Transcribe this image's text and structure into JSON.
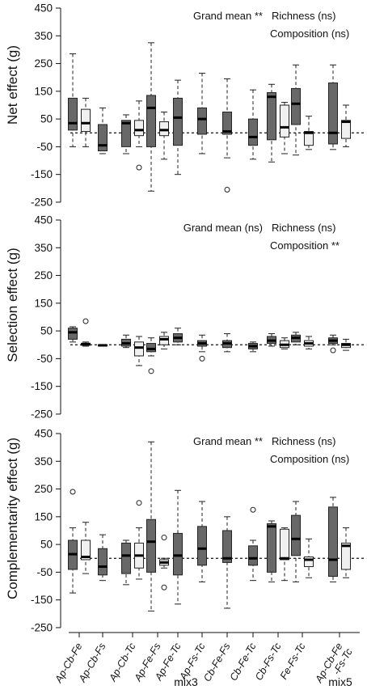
{
  "chart_data": [
    {
      "type": "box",
      "ylabel": "Net effect (g)",
      "yticks": [
        450,
        350,
        250,
        150,
        50,
        -50,
        -150,
        -250
      ],
      "ylim": [
        -250,
        450
      ],
      "reference_line": 0,
      "annotations": [
        {
          "text": "Grand mean **",
          "row": 1
        },
        {
          "text": "Richness (ns)",
          "row": 1
        },
        {
          "text": "Composition (ns)",
          "row": 2
        }
      ],
      "series": [
        {
          "category": "Ap-Cb-Fe",
          "fill": "#686868",
          "min": -50,
          "q1": 10,
          "median": 35,
          "q3": 125,
          "max": 285
        },
        {
          "category": "Ap-Cb-Fe",
          "fill": "#f0f0f0",
          "min": -50,
          "q1": 5,
          "median": 35,
          "q3": 85,
          "max": 125
        },
        {
          "category": "Ap-Cb-Fs",
          "fill": "#686868",
          "min": -75,
          "q1": -65,
          "median": -45,
          "q3": 30,
          "max": 90
        },
        {
          "category": "Ap-Cb-Tc",
          "fill": "#686868",
          "min": -75,
          "q1": -50,
          "median": 35,
          "q3": 45,
          "max": 65
        },
        {
          "category": "Ap-Cb-Tc",
          "fill": "#f0f0f0",
          "min": -50,
          "q1": -10,
          "median": 10,
          "q3": 45,
          "max": 115,
          "outliers": [
            -125
          ]
        },
        {
          "category": "Ap-Fe-Fs",
          "fill": "#686868",
          "min": -210,
          "q1": -50,
          "median": 90,
          "q3": 135,
          "max": 325
        },
        {
          "category": "Ap-Fe-Fs",
          "fill": "#f0f0f0",
          "min": -95,
          "q1": -10,
          "median": 10,
          "q3": 40,
          "max": 75
        },
        {
          "category": "Ap-Fe-Tc",
          "fill": "#686868",
          "min": -150,
          "q1": -45,
          "median": 55,
          "q3": 125,
          "max": 190
        },
        {
          "category": "Ap-Fs-Tc",
          "fill": "#686868",
          "min": -75,
          "q1": -5,
          "median": 50,
          "q3": 90,
          "max": 215
        },
        {
          "category": "Cb-Fe-Fs",
          "fill": "#686868",
          "min": -90,
          "q1": -5,
          "median": 5,
          "q3": 75,
          "max": 195,
          "outliers": [
            -205
          ]
        },
        {
          "category": "Cb-Fe-Tc",
          "fill": "#686868",
          "min": -95,
          "q1": -45,
          "median": -15,
          "q3": 50,
          "max": 155
        },
        {
          "category": "Cb-Fs-Tc",
          "fill": "#686868",
          "min": -105,
          "q1": -25,
          "median": 130,
          "q3": 145,
          "max": 175
        },
        {
          "category": "Cb-Fs-Tc",
          "fill": "#f0f0f0",
          "min": -75,
          "q1": -15,
          "median": 20,
          "q3": 100,
          "max": 110
        },
        {
          "category": "Fe-Fs-Tc",
          "fill": "#686868",
          "min": -80,
          "q1": 30,
          "median": 105,
          "q3": 160,
          "max": 245
        },
        {
          "category": "Fe-Fs-Tc",
          "fill": "#f0f0f0",
          "min": -60,
          "q1": -45,
          "median": 0,
          "q3": 5,
          "max": 60
        },
        {
          "category": "Ap-Cb-Fe-Fs-Tc",
          "fill": "#686868",
          "min": -60,
          "q1": -40,
          "median": 0,
          "q3": 180,
          "max": 245
        },
        {
          "category": "Ap-Cb-Fe-Fs-Tc",
          "fill": "#f0f0f0",
          "min": -50,
          "q1": -20,
          "median": 40,
          "q3": 45,
          "max": 100
        }
      ]
    },
    {
      "type": "box",
      "ylabel": "Selection effect (g)",
      "yticks": [
        450,
        350,
        250,
        150,
        50,
        -50,
        -150,
        -250
      ],
      "ylim": [
        -250,
        450
      ],
      "reference_line": 0,
      "annotations": [
        {
          "text": "Grand mean (ns)",
          "row": 1
        },
        {
          "text": "Richness (ns)",
          "row": 1
        },
        {
          "text": "Composition **",
          "row": 2
        }
      ],
      "series": [
        {
          "category": "Ap-Cb-Fe",
          "fill": "#686868",
          "min": 10,
          "q1": 20,
          "median": 45,
          "q3": 60,
          "max": 65
        },
        {
          "category": "Ap-Cb-Fe",
          "fill": "#f0f0f0",
          "min": -5,
          "q1": -2,
          "median": 3,
          "q3": 5,
          "max": 10,
          "outliers": [
            85
          ]
        },
        {
          "category": "Ap-Cb-Fs",
          "fill": "#686868",
          "min": -5,
          "q1": -4,
          "median": -2,
          "q3": 0,
          "max": 1
        },
        {
          "category": "Ap-Cb-Tc",
          "fill": "#686868",
          "min": -10,
          "q1": -5,
          "median": 5,
          "q3": 20,
          "max": 35
        },
        {
          "category": "Ap-Cb-Tc",
          "fill": "#f0f0f0",
          "min": -75,
          "q1": -40,
          "median": -10,
          "q3": 10,
          "max": 30
        },
        {
          "category": "Ap-Fe-Fs",
          "fill": "#686868",
          "min": -40,
          "q1": -25,
          "median": -15,
          "q3": 5,
          "max": 25,
          "outliers": [
            -95
          ]
        },
        {
          "category": "Ap-Fe-Fs",
          "fill": "#f0f0f0",
          "min": -15,
          "q1": 0,
          "median": 20,
          "q3": 30,
          "max": 45
        },
        {
          "category": "Ap-Fe-Tc",
          "fill": "#686868",
          "min": 0,
          "q1": 10,
          "median": 25,
          "q3": 40,
          "max": 60
        },
        {
          "category": "Ap-Fs-Tc",
          "fill": "#686868",
          "min": -25,
          "q1": -5,
          "median": 5,
          "q3": 15,
          "max": 35,
          "outliers": [
            -50
          ]
        },
        {
          "category": "Cb-Fe-Fs",
          "fill": "#686868",
          "min": -25,
          "q1": -10,
          "median": 5,
          "q3": 15,
          "max": 40
        },
        {
          "category": "Cb-Fe-Tc",
          "fill": "#686868",
          "min": -25,
          "q1": -15,
          "median": -5,
          "q3": 5,
          "max": 10
        },
        {
          "category": "Cb-Fs-Tc",
          "fill": "#686868",
          "min": -5,
          "q1": 5,
          "median": 15,
          "q3": 30,
          "max": 40
        },
        {
          "category": "Cb-Fs-Tc",
          "fill": "#f0f0f0",
          "min": -15,
          "q1": -10,
          "median": 0,
          "q3": 15,
          "max": 25
        },
        {
          "category": "Fe-Fs-Tc",
          "fill": "#686868",
          "min": 0,
          "q1": 10,
          "median": 25,
          "q3": 35,
          "max": 45
        },
        {
          "category": "Fe-Fs-Tc",
          "fill": "#f0f0f0",
          "min": -15,
          "q1": -5,
          "median": 5,
          "q3": 15,
          "max": 30
        },
        {
          "category": "Ap-Cb-Fe-Fs-Tc",
          "fill": "#686868",
          "min": 0,
          "q1": 5,
          "median": 15,
          "q3": 25,
          "max": 35,
          "outliers": [
            -20
          ]
        },
        {
          "category": "Ap-Cb-Fe-Fs-Tc",
          "fill": "#f0f0f0",
          "min": -20,
          "q1": -10,
          "median": 0,
          "q3": 5,
          "max": 20
        }
      ]
    },
    {
      "type": "box",
      "ylabel": "Complementarity effect (g)",
      "yticks": [
        450,
        350,
        250,
        150,
        50,
        -50,
        -150,
        -250
      ],
      "ylim": [
        -250,
        450
      ],
      "reference_line": 0,
      "annotations": [
        {
          "text": "Grand mean **",
          "row": 1
        },
        {
          "text": "Richness (ns)",
          "row": 1
        },
        {
          "text": "Composition (ns)",
          "row": 2
        }
      ],
      "series": [
        {
          "category": "Ap-Cb-Fe",
          "fill": "#686868",
          "min": -125,
          "q1": -40,
          "median": 15,
          "q3": 65,
          "max": 110,
          "outliers": [
            240
          ]
        },
        {
          "category": "Ap-Cb-Fe",
          "fill": "#f0f0f0",
          "min": -55,
          "q1": -5,
          "median": 5,
          "q3": 65,
          "max": 130
        },
        {
          "category": "Ap-Cb-Fs",
          "fill": "#686868",
          "min": -80,
          "q1": -60,
          "median": -30,
          "q3": 35,
          "max": 85
        },
        {
          "category": "Ap-Cb-Tc",
          "fill": "#686868",
          "min": -95,
          "q1": -55,
          "median": 10,
          "q3": 55,
          "max": 65
        },
        {
          "category": "Ap-Cb-Tc",
          "fill": "#f0f0f0",
          "min": -75,
          "q1": -35,
          "median": 10,
          "q3": 55,
          "max": 110,
          "outliers": [
            200
          ]
        },
        {
          "category": "Ap-Fe-Fs",
          "fill": "#686868",
          "min": -190,
          "q1": -50,
          "median": 60,
          "q3": 140,
          "max": 420
        },
        {
          "category": "Ap-Fe-Fs",
          "fill": "#f0f0f0",
          "min": -35,
          "q1": -25,
          "median": -15,
          "q3": -5,
          "max": 0,
          "outliers": [
            75,
            -105
          ]
        },
        {
          "category": "Ap-Fe-Tc",
          "fill": "#686868",
          "min": -165,
          "q1": -60,
          "median": 10,
          "q3": 90,
          "max": 245
        },
        {
          "category": "Ap-Fs-Tc",
          "fill": "#686868",
          "min": -85,
          "q1": -25,
          "median": 35,
          "q3": 115,
          "max": 205
        },
        {
          "category": "Cb-Fe-Fs",
          "fill": "#686868",
          "min": -180,
          "q1": -15,
          "median": 0,
          "q3": 100,
          "max": 150
        },
        {
          "category": "Cb-Fe-Tc",
          "fill": "#686868",
          "min": -80,
          "q1": -25,
          "median": 0,
          "q3": 45,
          "max": 65,
          "outliers": [
            175
          ]
        },
        {
          "category": "Cb-Fs-Tc",
          "fill": "#686868",
          "min": -85,
          "q1": -50,
          "median": 115,
          "q3": 125,
          "max": 135
        },
        {
          "category": "Cb-Fs-Tc",
          "fill": "#f0f0f0",
          "min": -80,
          "q1": -5,
          "median": 0,
          "q3": 105,
          "max": 110
        },
        {
          "category": "Fe-Fs-Tc",
          "fill": "#686868",
          "min": -85,
          "q1": 10,
          "median": 70,
          "q3": 155,
          "max": 205
        },
        {
          "category": "Fe-Fs-Tc",
          "fill": "#f0f0f0",
          "min": -70,
          "q1": -30,
          "median": -5,
          "q3": 5,
          "max": 70
        },
        {
          "category": "Ap-Cb-Fe-Fs-Tc",
          "fill": "#686868",
          "min": -85,
          "q1": -65,
          "median": -5,
          "q3": 185,
          "max": 220
        },
        {
          "category": "Ap-Cb-Fe-Fs-Tc",
          "fill": "#f0f0f0",
          "min": -70,
          "q1": -40,
          "median": 45,
          "q3": 55,
          "max": 110
        }
      ]
    }
  ],
  "x_axis": {
    "categories": [
      "Ap-Cb-Fe",
      "Ap-Cb-Fs",
      "Ap-Cb-Tc",
      "Ap-Fe-Fs",
      "Ap-Fe-Tc",
      "Ap-Fs-Tc",
      "Cb-Fe-Fs",
      "Cb-Fe-Tc",
      "Cb-Fs-Tc",
      "Fe-Fs-Tc",
      "Ap-Cb-Fe-Fs-Tc"
    ],
    "category_lines": [
      [
        "Ap-Cb-Fe"
      ],
      [
        "Ap-Cb-Fs"
      ],
      [
        "Ap-Cb-Tc"
      ],
      [
        "Ap-Fe-Fs"
      ],
      [
        "Ap-Fe-Tc"
      ],
      [
        "Ap-Fs-Tc"
      ],
      [
        "Cb-Fe-Fs"
      ],
      [
        "Cb-Fe-Tc"
      ],
      [
        "Cb-Fs-Tc"
      ],
      [
        "Fe-Fs-Tc"
      ],
      [
        "Ap-Cb-Fe",
        "-Fs-Tc"
      ]
    ],
    "groups": [
      "mix3",
      "mix5"
    ]
  },
  "colors": {
    "dark_box": "#686868",
    "light_box": "#f0f0f0",
    "axis": "#111111"
  }
}
